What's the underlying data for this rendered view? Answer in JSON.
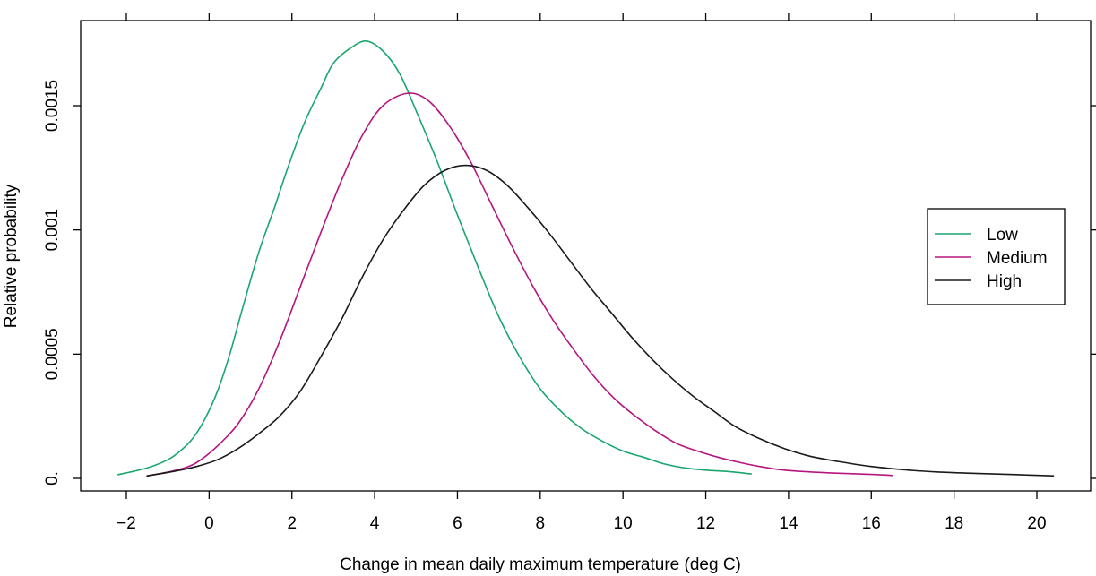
{
  "chart_data": {
    "type": "line",
    "xlabel": "Change in mean daily maximum temperature (deg C)",
    "ylabel": "Relative probability",
    "xlim": [
      -2.5,
      21.2
    ],
    "ylim": [
      -5e-05,
      0.0018
    ],
    "x_ticks": [
      {
        "value": -2,
        "label": "−2"
      },
      {
        "value": 0,
        "label": "0"
      },
      {
        "value": 2,
        "label": "2"
      },
      {
        "value": 4,
        "label": "4"
      },
      {
        "value": 6,
        "label": "6"
      },
      {
        "value": 8,
        "label": "8"
      },
      {
        "value": 10,
        "label": "10"
      },
      {
        "value": 12,
        "label": "12"
      },
      {
        "value": 14,
        "label": "14"
      },
      {
        "value": 16,
        "label": "16"
      },
      {
        "value": 18,
        "label": "18"
      },
      {
        "value": 20,
        "label": "20"
      }
    ],
    "y_ticks": [
      {
        "value": 0,
        "label": "0."
      },
      {
        "value": 0.0005,
        "label": "0.0005"
      },
      {
        "value": 0.001,
        "label": "0.001"
      },
      {
        "value": 0.0015,
        "label": "0.0015"
      }
    ],
    "grid": false,
    "legend_position": "right",
    "series": [
      {
        "name": "Low",
        "color": "#1aa66e",
        "x": [
          -2.2,
          -1.5,
          -1.0,
          -0.7,
          -0.4,
          -0.1,
          0.2,
          0.5,
          0.8,
          1.2,
          1.6,
          1.9,
          2.3,
          2.7,
          3.0,
          3.4,
          3.8,
          4.2,
          4.6,
          5.0,
          5.5,
          6.0,
          6.5,
          7.0,
          7.5,
          8.0,
          8.5,
          9.0,
          9.5,
          10.0,
          10.5,
          11.0,
          11.5,
          12.0,
          12.5,
          13.1
        ],
        "y": [
          1.5e-05,
          4.2e-05,
          7.5e-05,
          0.00011,
          0.00016,
          0.00024,
          0.00035,
          0.0005,
          0.00068,
          0.00091,
          0.0011,
          0.00125,
          0.00143,
          0.00157,
          0.00167,
          0.00173,
          0.00176,
          0.00172,
          0.00163,
          0.00148,
          0.00128,
          0.00106,
          0.00085,
          0.00065,
          0.00049,
          0.00036,
          0.00027,
          0.0002,
          0.00015,
          0.00011,
          8.5e-05,
          5.8e-05,
          4.2e-05,
          3.3e-05,
          2.8e-05,
          1.8e-05
        ]
      },
      {
        "name": "Medium",
        "color": "#b5167e",
        "x": [
          -1.5,
          -1.0,
          -0.5,
          -0.2,
          0.2,
          0.7,
          1.2,
          1.7,
          2.2,
          2.7,
          3.2,
          3.7,
          4.2,
          4.8,
          5.3,
          5.8,
          6.3,
          6.8,
          7.3,
          7.8,
          8.3,
          8.8,
          9.3,
          9.8,
          10.3,
          10.8,
          11.3,
          11.8,
          12.3,
          12.8,
          13.3,
          13.8,
          14.3,
          15.0,
          16.0,
          16.5
        ],
        "y": [
          1e-05,
          2.5e-05,
          4.8e-05,
          7.5e-05,
          0.00013,
          0.00022,
          0.00036,
          0.00055,
          0.00077,
          0.00099,
          0.0012,
          0.00138,
          0.0015,
          0.00155,
          0.00152,
          0.00142,
          0.00128,
          0.00111,
          0.00094,
          0.00078,
          0.00064,
          0.00052,
          0.00041,
          0.00032,
          0.00025,
          0.00019,
          0.00014,
          0.00011,
          8.5e-05,
          6.5e-05,
          4.8e-05,
          3.5e-05,
          2.8e-05,
          2.2e-05,
          1.6e-05,
          1.2e-05
        ]
      },
      {
        "name": "High",
        "color": "#1a1a1a",
        "x": [
          -1.5,
          -0.8,
          -0.3,
          0.2,
          0.7,
          1.2,
          1.7,
          2.2,
          2.7,
          3.2,
          3.7,
          4.2,
          4.7,
          5.2,
          5.7,
          6.2,
          6.7,
          7.2,
          7.7,
          8.2,
          8.7,
          9.2,
          9.7,
          10.2,
          10.7,
          11.2,
          11.7,
          12.2,
          12.7,
          13.3,
          13.9,
          14.5,
          15.2,
          16.0,
          17.0,
          17.7,
          18.5,
          19.5,
          20.4
        ],
        "y": [
          1e-05,
          3e-05,
          4.8e-05,
          7.5e-05,
          0.00012,
          0.00018,
          0.00025,
          0.00035,
          0.00049,
          0.00064,
          0.00081,
          0.00096,
          0.00108,
          0.00118,
          0.00124,
          0.00126,
          0.00124,
          0.00118,
          0.00109,
          0.00099,
          0.00088,
          0.00077,
          0.00067,
          0.00057,
          0.00048,
          0.0004,
          0.00033,
          0.00027,
          0.00021,
          0.00016,
          0.00012,
          9e-05,
          6.8e-05,
          4.8e-05,
          3.2e-05,
          2.5e-05,
          2e-05,
          1.5e-05,
          1e-05
        ]
      }
    ]
  }
}
